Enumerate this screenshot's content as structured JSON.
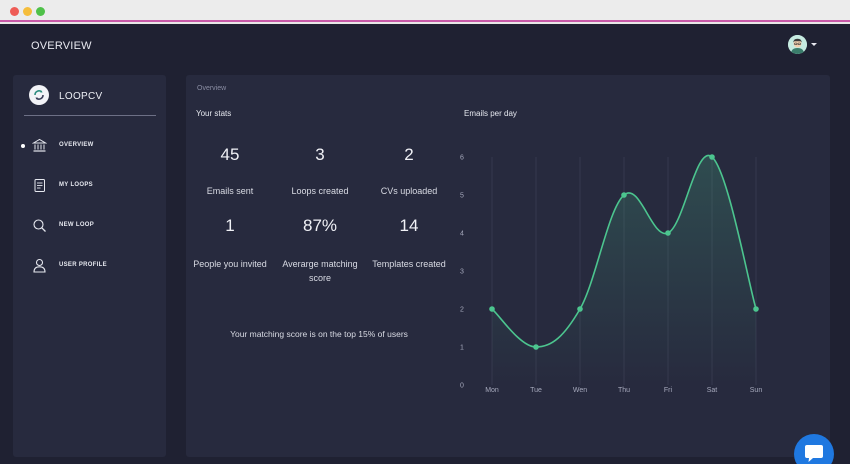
{
  "header": {
    "title": "OVERVIEW"
  },
  "sidebar": {
    "brand": "LOOPCV",
    "items": [
      {
        "label": "OVERVIEW",
        "icon": "bank-icon",
        "active": true
      },
      {
        "label": "MY LOOPS",
        "icon": "document-icon",
        "active": false
      },
      {
        "label": "NEW LOOP",
        "icon": "search-icon",
        "active": false
      },
      {
        "label": "USER PROFILE",
        "icon": "user-icon",
        "active": false
      }
    ]
  },
  "main": {
    "crumb": "Overview",
    "stats_title": "Your stats",
    "stats": [
      {
        "value": "45",
        "label": "Emails sent"
      },
      {
        "value": "3",
        "label": "Loops created"
      },
      {
        "value": "2",
        "label": "CVs uploaded"
      },
      {
        "value": "1",
        "label": "People you invited"
      },
      {
        "value": "87%",
        "label": "Averarge matching score"
      },
      {
        "value": "14",
        "label": "Templates created"
      }
    ],
    "note": "Your matching score is on the top 15% of users",
    "chart_title": "Emails per day"
  },
  "colors": {
    "background": "#1f2132",
    "panel": "#272a3e",
    "accent": "#4cc58f",
    "chat_button": "#1f78e0"
  },
  "chart_data": {
    "type": "line",
    "title": "Emails per day",
    "categories": [
      "Mon",
      "Tue",
      "Wen",
      "Thu",
      "Fri",
      "Sat",
      "Sun"
    ],
    "values": [
      2,
      1,
      2,
      5,
      4,
      6,
      2
    ],
    "yticks": [
      "0",
      "1",
      "2",
      "3",
      "4",
      "5",
      "6"
    ],
    "ylim": [
      0,
      6
    ],
    "grid": "vertical",
    "legend": "none",
    "color": "#4cc58f"
  }
}
